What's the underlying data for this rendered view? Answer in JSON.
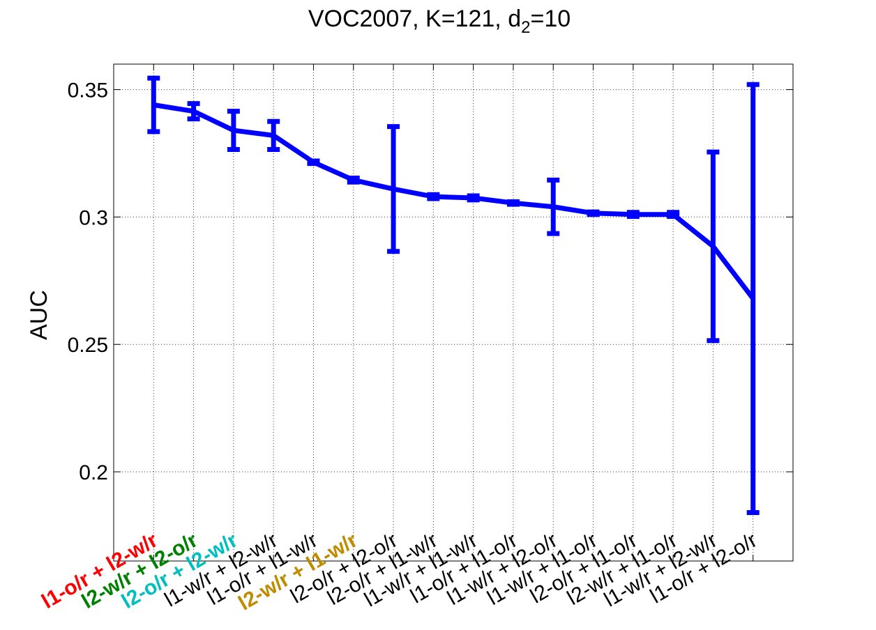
{
  "chart_data": {
    "type": "line",
    "title": {
      "prefix": "VOC2007, K=121, d",
      "subscript": "2",
      "suffix": "=10"
    },
    "xlabel": "",
    "ylabel": "AUC",
    "ylim": [
      0.165,
      0.36
    ],
    "yticks": [
      {
        "value": 0.2,
        "label": "0.2"
      },
      {
        "value": 0.25,
        "label": "0.25"
      },
      {
        "value": 0.3,
        "label": "0.3"
      },
      {
        "value": 0.35,
        "label": "0.35"
      }
    ],
    "grid": true,
    "categories": [
      {
        "label": "l1-o/r + l2-w/r",
        "color": "#ff0000",
        "bold": true
      },
      {
        "label": "l2-w/r + l2-o/r",
        "color": "#008000",
        "bold": true
      },
      {
        "label": "l2-o/r + l2-w/r",
        "color": "#00bfbf",
        "bold": true
      },
      {
        "label": "l1-w/r + l2-w/r",
        "color": "#000000",
        "bold": false
      },
      {
        "label": "l1-o/r + l1-w/r",
        "color": "#000000",
        "bold": false
      },
      {
        "label": "l2-w/r + l1-w/r",
        "color": "#bf8c00",
        "bold": true
      },
      {
        "label": "l2-o/r + l2-o/r",
        "color": "#000000",
        "bold": false
      },
      {
        "label": "l2-o/r + l1-w/r",
        "color": "#000000",
        "bold": false
      },
      {
        "label": "l1-w/r + l1-w/r",
        "color": "#000000",
        "bold": false
      },
      {
        "label": "l1-o/r + l1-o/r",
        "color": "#000000",
        "bold": false
      },
      {
        "label": "l1-w/r + l2-o/r",
        "color": "#000000",
        "bold": false
      },
      {
        "label": "l1-w/r + l1-o/r",
        "color": "#000000",
        "bold": false
      },
      {
        "label": "l2-o/r + l1-o/r",
        "color": "#000000",
        "bold": false
      },
      {
        "label": "l2-w/r + l1-o/r",
        "color": "#000000",
        "bold": false
      },
      {
        "label": "l1-w/r + l2-w/r",
        "color": "#000000",
        "bold": false
      },
      {
        "label": "l1-o/r + l2-o/r",
        "color": "#000000",
        "bold": false
      }
    ],
    "series": [
      {
        "name": "AUC",
        "color": "#0000ff",
        "values": [
          0.344,
          0.3415,
          0.334,
          0.332,
          0.3215,
          0.3145,
          0.311,
          0.308,
          0.3075,
          0.3055,
          0.304,
          0.3015,
          0.301,
          0.301,
          0.2885,
          0.268
        ],
        "errors": [
          0.0105,
          0.003,
          0.0075,
          0.0055,
          0.0005,
          0.0008,
          0.0245,
          0.0008,
          0.0008,
          0.0005,
          0.0105,
          0.0005,
          0.0008,
          0.0008,
          0.037,
          0.084
        ]
      }
    ]
  }
}
